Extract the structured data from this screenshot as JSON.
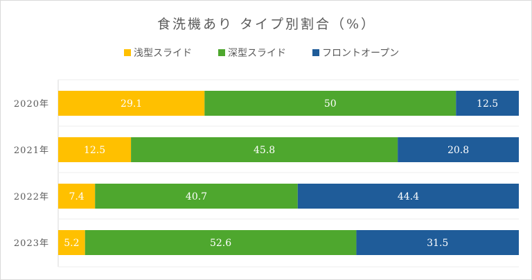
{
  "chart_data": {
    "type": "bar",
    "orientation": "horizontal",
    "stacked": "percent",
    "title": "食洗機あり タイプ別割合（%）",
    "legend_position": "top",
    "categories": [
      "2020年",
      "2021年",
      "2022年",
      "2023年"
    ],
    "series": [
      {
        "name": "浅型スライド",
        "color": "#FFC000",
        "values": [
          29.1,
          12.5,
          7.4,
          5.2
        ]
      },
      {
        "name": "深型スライド",
        "color": "#4EA72E",
        "values": [
          50,
          45.8,
          40.7,
          52.6
        ]
      },
      {
        "name": "フロントオープン",
        "color": "#1F5C99",
        "values": [
          12.5,
          20.8,
          44.4,
          31.5
        ]
      }
    ],
    "grid": true
  }
}
